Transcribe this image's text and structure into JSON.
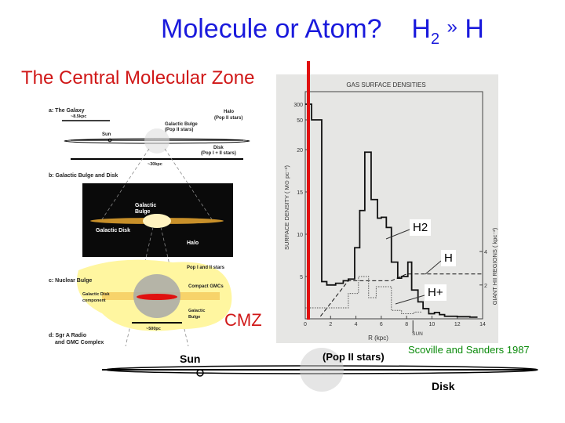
{
  "slide": {
    "title_main": "Molecule or Atom?",
    "title_h2": "H",
    "title_h2_sub": "2",
    "title_arrow": "»",
    "title_h": "H",
    "subtitle": "The Central Molecular Zone",
    "cmz_label": "CMZ",
    "citation": "Scoville and Sanders 1987",
    "accent_colors": {
      "title": "#1a1adc",
      "red": "#e01010",
      "citation": "#0a8a0a"
    }
  },
  "diagram": {
    "panel_a": "a: The Galaxy",
    "scale_85": "~8.5kpc",
    "halo": "Halo",
    "halo_pop": "(Pop II stars)",
    "bulge": "Galactic Bulge",
    "bulge_pop": "(Pop II stars)",
    "sun": "Sun",
    "disk": "Disk",
    "disk_pop": "(Pop I + II stars)",
    "scale_30": "~30kpc",
    "panel_b": "b: Galactic Bulge and Disk",
    "b_bulge1": "Galactic",
    "b_bulge2": "Bulge",
    "b_disk": "Galactic Disk",
    "b_halo": "Halo",
    "panel_c": "c: Nuclear Bulge",
    "c_pop": "Pop I and II stars",
    "c_gmc": "Compact GMCs",
    "c_disk1": "Galactic Disk",
    "c_disk2": "component",
    "c_bulge1": "Galactic",
    "c_bulge2": "Bulge",
    "scale_500": "~500pc",
    "panel_d1": "d: Sgr A Radio",
    "panel_d2": "and GMC Complex"
  },
  "strip": {
    "sun": "Sun",
    "pop": "(Pop II stars)",
    "disk": "Disk"
  },
  "chart_data": {
    "type": "line",
    "title": "GAS SURFACE DENSITIES",
    "xlabel": "R (kpc)",
    "ylabel": "SURFACE DENSITY ( M⊙ pc⁻²)",
    "y2label": "GIANT HII REGIONS ( kpc⁻²)",
    "xlim": [
      0,
      14
    ],
    "x_ticks": [
      "0",
      "2",
      "4",
      "6",
      "8",
      "10",
      "12",
      "14"
    ],
    "y_ticks": [
      "5",
      "10",
      "15",
      "20",
      "50",
      "300"
    ],
    "y2_ticks": [
      "2",
      "4"
    ],
    "sun_marker": "SUN",
    "sun_r": 8.5,
    "series": [
      {
        "name": "H2",
        "style": "solid-step",
        "x": [
          0,
          0.5,
          1.3,
          1.7,
          2.4,
          3.0,
          3.4,
          3.9,
          4.3,
          4.7,
          5.2,
          5.7,
          6.0,
          6.4,
          6.8,
          7.3,
          7.6,
          8.1,
          8.4,
          8.9,
          9.3,
          9.75,
          10.2,
          10.6,
          11,
          12,
          13,
          13.6
        ],
        "y": [
          300,
          50,
          4.4,
          4.0,
          4.2,
          4.5,
          4.7,
          8.4,
          12.8,
          19.7,
          14.1,
          11.9,
          12.0,
          10.8,
          6.7,
          4.8,
          5.0,
          6.7,
          3.4,
          2.0,
          1.2,
          0.6,
          0.75,
          0.5,
          0.3,
          0.25,
          0.2,
          0.2
        ]
      },
      {
        "name": "H",
        "style": "dashed",
        "x": [
          1.2,
          3.4,
          6.8,
          8.0,
          14
        ],
        "y": [
          0.3,
          4.5,
          4.5,
          5.3,
          5.3
        ]
      },
      {
        "name": "H+",
        "style": "dotted-step",
        "x": [
          0,
          3.4,
          4.2,
          5.0,
          5.6,
          6.8,
          7.6,
          8.6
        ],
        "y": [
          1.3,
          3.0,
          5.0,
          2.5,
          3.8,
          1.0,
          0.6,
          0.8
        ]
      }
    ],
    "grid": false,
    "legend": "inline-labels"
  }
}
